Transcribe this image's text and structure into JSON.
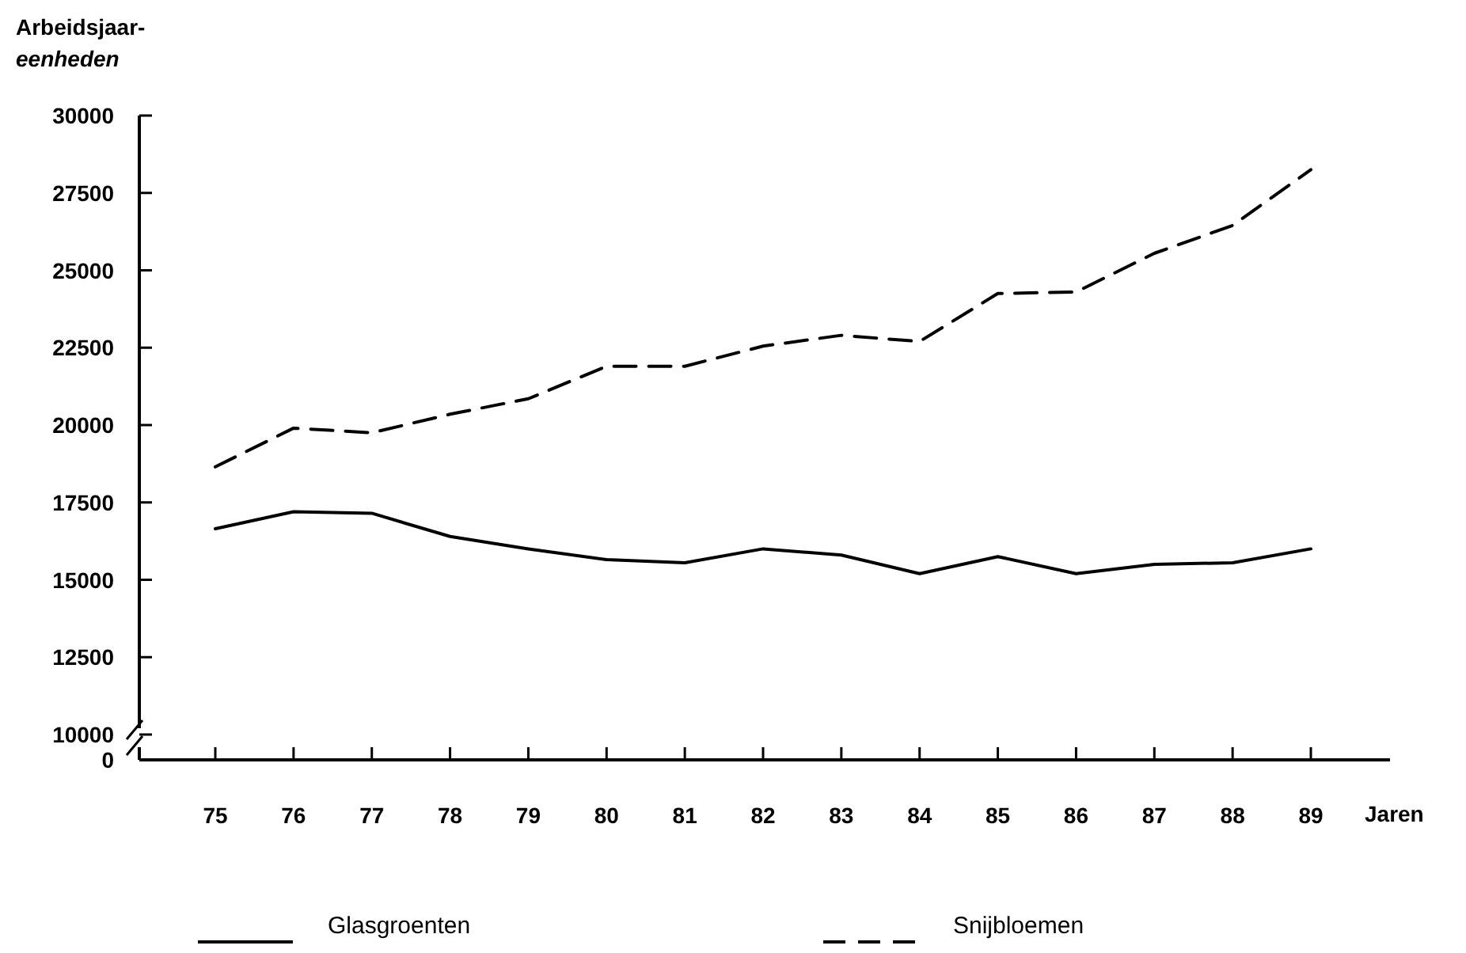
{
  "chart_data": {
    "type": "line",
    "ylabel": "Arbeidsjaar-eenheden",
    "xlabel": "Jaren",
    "categories": [
      "75",
      "76",
      "77",
      "78",
      "79",
      "80",
      "81",
      "82",
      "83",
      "84",
      "85",
      "86",
      "87",
      "88",
      "89"
    ],
    "series": [
      {
        "name": "Glasgroenten",
        "color": "#000000",
        "line_style": "solid",
        "values": [
          16650,
          17200,
          17150,
          16400,
          16000,
          15650,
          15550,
          16000,
          15800,
          15200,
          15750,
          15200,
          15500,
          15550,
          16000
        ]
      },
      {
        "name": "Snijbloemen",
        "color": "#000000",
        "line_style": "dashed",
        "values": [
          18650,
          19900,
          19750,
          20350,
          20850,
          21900,
          21900,
          22550,
          22900,
          22700,
          24250,
          24300,
          25550,
          26450,
          28250
        ]
      }
    ],
    "ylim": [
      10000,
      30000
    ],
    "yticks": [
      10000,
      12500,
      15000,
      17500,
      20000,
      22500,
      25000,
      27500,
      30000
    ],
    "annotations": [
      "0"
    ],
    "legend": "bottom",
    "grid": false,
    "marker": "none"
  }
}
